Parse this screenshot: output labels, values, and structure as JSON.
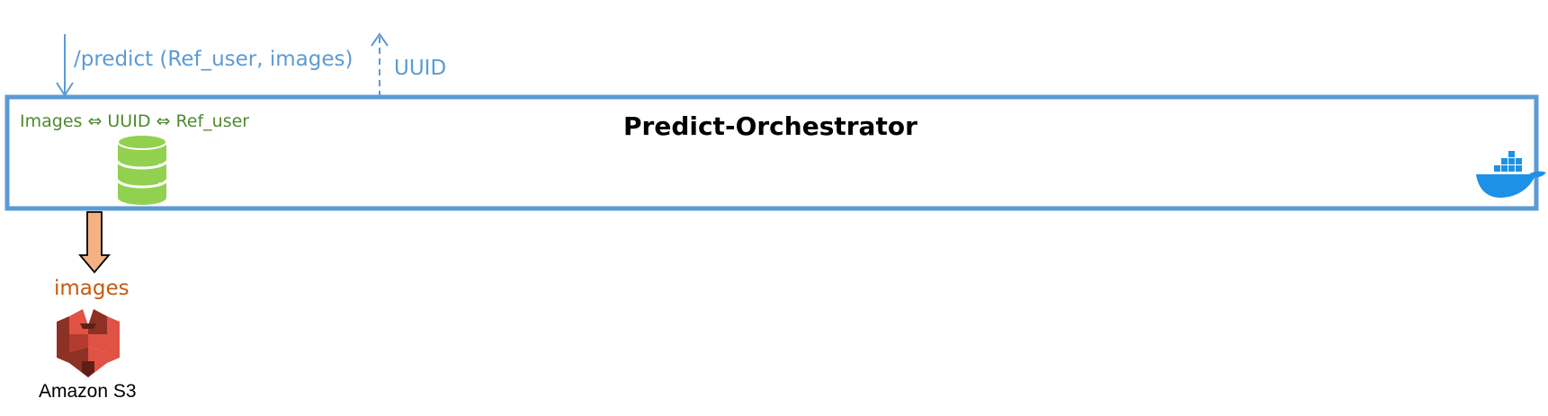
{
  "request": {
    "label": "/predict (Ref_user, images)"
  },
  "response": {
    "label": "UUID"
  },
  "orchestrator": {
    "title": "Predict-Orchestrator",
    "mapping_label": "Images ⇔ UUID ⇔ Ref_user"
  },
  "storage_flow": {
    "label": "images"
  },
  "s3": {
    "label": "Amazon S3"
  },
  "colors": {
    "container_border": "#5b9bd5",
    "database": "#92d050",
    "arrow_fill": "#f4b183",
    "s3": "#e05243"
  },
  "icons": [
    "database-icon",
    "docker-icon",
    "amazon-s3-icon"
  ]
}
